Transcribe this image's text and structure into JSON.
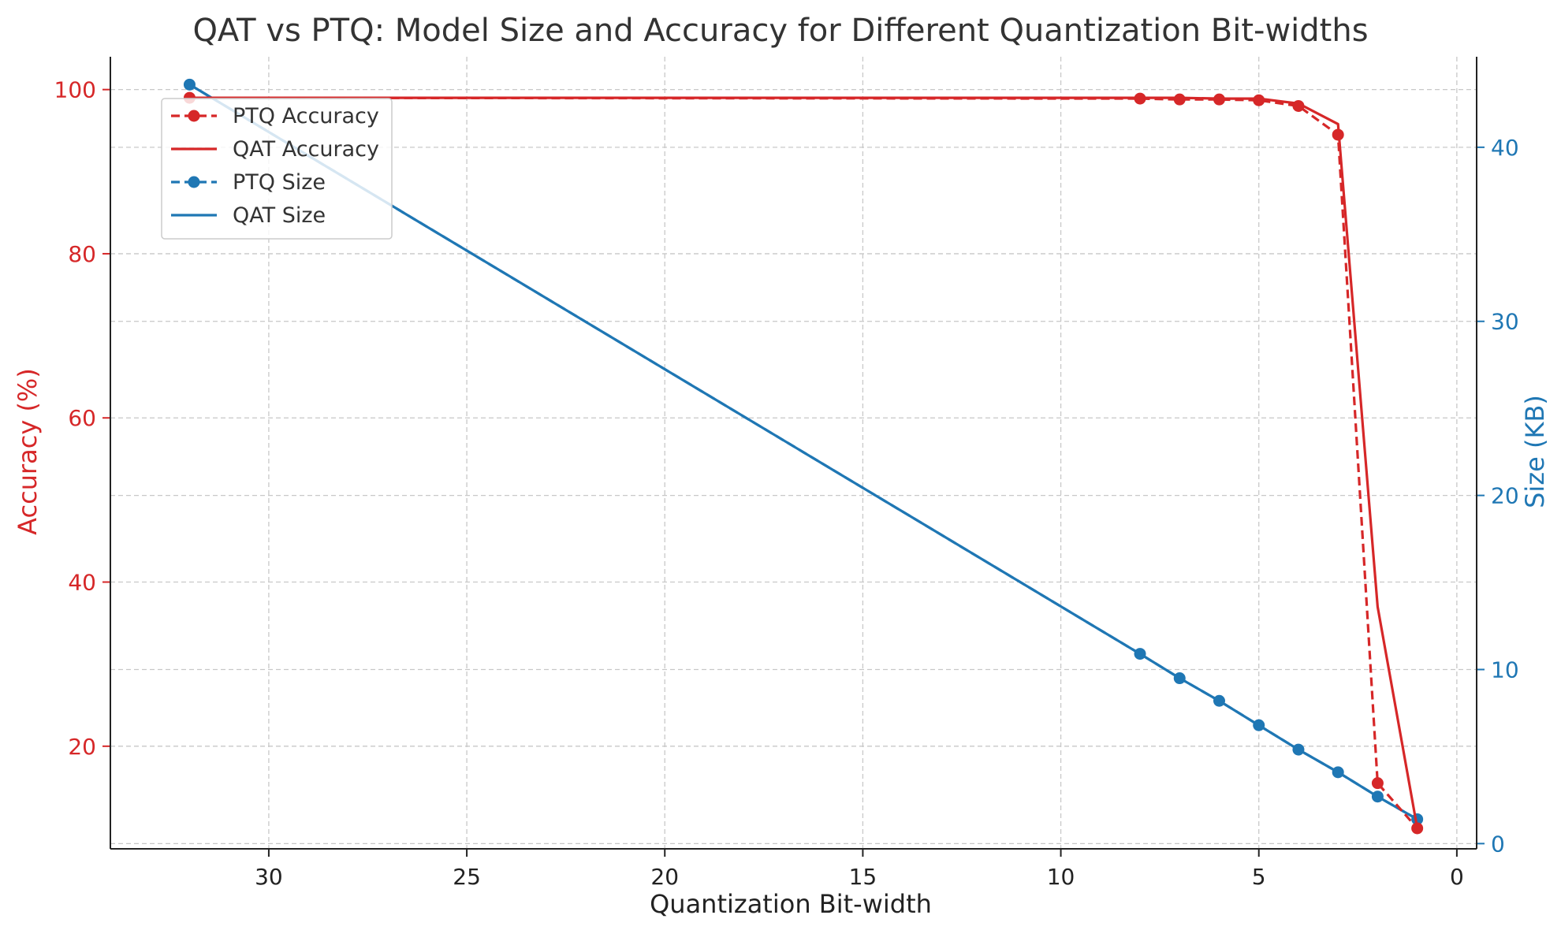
{
  "chart_data": {
    "type": "line",
    "title": "QAT vs PTQ: Model Size and Accuracy for Different Quantization Bit-widths",
    "xlabel": "Quantization Bit-width",
    "ylabel_left": "Accuracy (%)",
    "ylabel_right": "Size (KB)",
    "xlim": [
      34,
      -0.5
    ],
    "x_inverted": true,
    "ylim_left": [
      7.5,
      104
    ],
    "ylim_right": [
      -0.3,
      45.2
    ],
    "xticks": [
      30,
      25,
      20,
      15,
      10,
      5,
      0
    ],
    "yticks_left": [
      20,
      40,
      60,
      80,
      100
    ],
    "yticks_right": [
      0,
      10,
      20,
      30,
      40
    ],
    "grid": true,
    "legend_position": "upper-left",
    "colors": {
      "accuracy": "#d62728",
      "size": "#1f77b4",
      "text": "#333333"
    },
    "series": [
      {
        "name": "PTQ Accuracy",
        "axis": "left",
        "color": "#d62728",
        "style": "dashed",
        "marker": true,
        "x": [
          32,
          8,
          7,
          6,
          5,
          4,
          3,
          2,
          1
        ],
        "y": [
          99.0,
          98.9,
          98.8,
          98.8,
          98.7,
          98.0,
          94.5,
          15.5,
          10.0
        ]
      },
      {
        "name": "QAT Accuracy",
        "axis": "left",
        "color": "#d62728",
        "style": "solid",
        "marker": false,
        "x": [
          32,
          8,
          7,
          6,
          5,
          4,
          3,
          2,
          1
        ],
        "y": [
          99.0,
          99.0,
          99.0,
          98.9,
          98.9,
          98.3,
          95.8,
          37.0,
          10.0
        ]
      },
      {
        "name": "PTQ Size",
        "axis": "right",
        "color": "#1f77b4",
        "style": "dashed",
        "marker": true,
        "x": [
          32,
          8,
          7,
          6,
          5,
          4,
          3,
          2,
          1
        ],
        "y": [
          43.6,
          10.9,
          9.5,
          8.2,
          6.8,
          5.4,
          4.1,
          2.7,
          1.4
        ]
      },
      {
        "name": "QAT Size",
        "axis": "right",
        "color": "#1f77b4",
        "style": "solid",
        "marker": false,
        "x": [
          32,
          8,
          7,
          6,
          5,
          4,
          3,
          2,
          1
        ],
        "y": [
          43.6,
          10.9,
          9.5,
          8.2,
          6.8,
          5.4,
          4.1,
          2.7,
          1.4
        ]
      }
    ]
  }
}
